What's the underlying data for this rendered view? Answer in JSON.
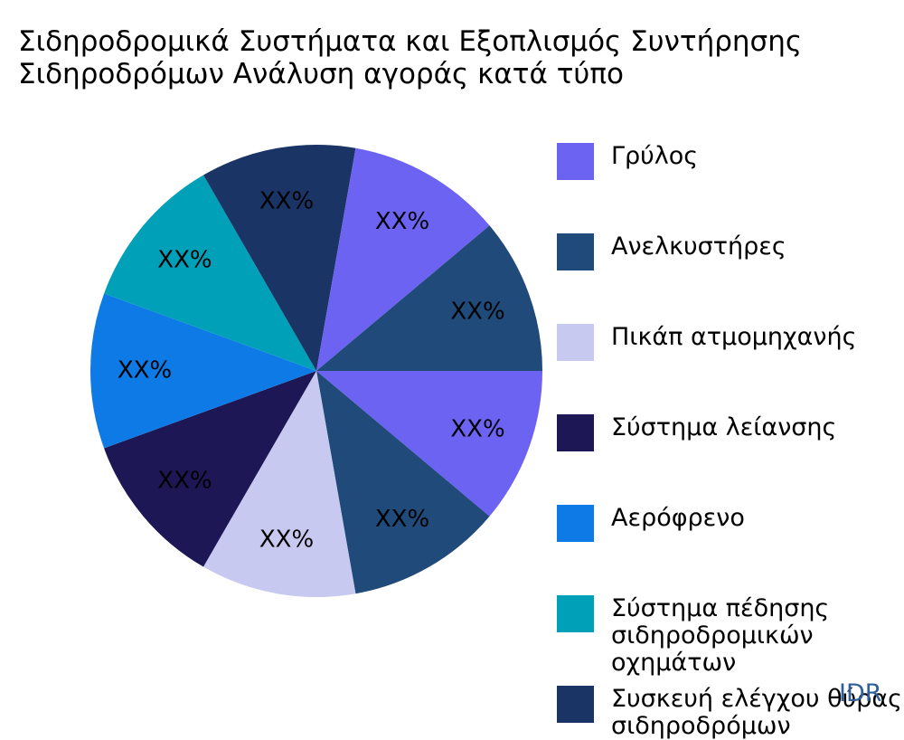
{
  "title_lines": [
    "Σιδηροδρομικά Συστήματα και Εξοπλισμός Συντήρησης",
    "Σιδηροδρόμων Ανάλυση αγοράς κατά τύπο"
  ],
  "chart_data": {
    "type": "pie",
    "title": "Σιδηροδρομικά Συστήματα και Εξοπλισμός Συντήρησης Σιδηροδρόμων Ανάλυση αγοράς κατά τύπο",
    "legend_position": "right",
    "slices": [
      {
        "label": "Γρύλος",
        "display_value": "XX%",
        "share": 0.1111,
        "color": "#6c63f2"
      },
      {
        "label": "Ανελκυστήρες",
        "display_value": "XX%",
        "share": 0.1111,
        "color": "#1f4a7a"
      },
      {
        "label": "Πικάπ ατμομηχανής",
        "display_value": "XX%",
        "share": 0.1111,
        "color": "#c8c9f0"
      },
      {
        "label": "Σύστημα λείανσης",
        "display_value": "XX%",
        "share": 0.1111,
        "color": "#1d1756"
      },
      {
        "label": "Αερόφρενο",
        "display_value": "XX%",
        "share": 0.1111,
        "color": "#0e7ae6"
      },
      {
        "label": "Σύστημα πέδησης σιδηροδρομικών οχημάτων",
        "display_value": "XX%",
        "share": 0.1111,
        "color": "#00a0b9"
      },
      {
        "label": "Συσκευή ελέγχου θύρας σιδηροδρόμων",
        "display_value": "XX%",
        "share": 0.1111,
        "color": "#1a3466"
      },
      {
        "label": "",
        "display_value": "XX%",
        "share": 0.1111,
        "color": "#6c63f2"
      },
      {
        "label": "",
        "display_value": "XX%",
        "share": 0.1111,
        "color": "#1f4a7a"
      }
    ]
  },
  "legend": [
    {
      "lines": [
        "Γρύλος"
      ],
      "color": "#6c63f2"
    },
    {
      "lines": [
        "Ανελκυστήρες"
      ],
      "color": "#1f4a7a"
    },
    {
      "lines": [
        "Πικάπ ατμομηχανής"
      ],
      "color": "#c8c9f0"
    },
    {
      "lines": [
        "Σύστημα λείανσης"
      ],
      "color": "#1d1756"
    },
    {
      "lines": [
        "Αερόφρενο"
      ],
      "color": "#0e7ae6"
    },
    {
      "lines": [
        "Σύστημα πέδησης",
        "σιδηροδρομικών",
        "οχημάτων"
      ],
      "color": "#00a0b9"
    },
    {
      "lines": [
        "Συσκευή ελέγχου θύρας",
        "σιδηροδρόμων"
      ],
      "color": "#1a3466"
    }
  ],
  "watermark": "IDR"
}
